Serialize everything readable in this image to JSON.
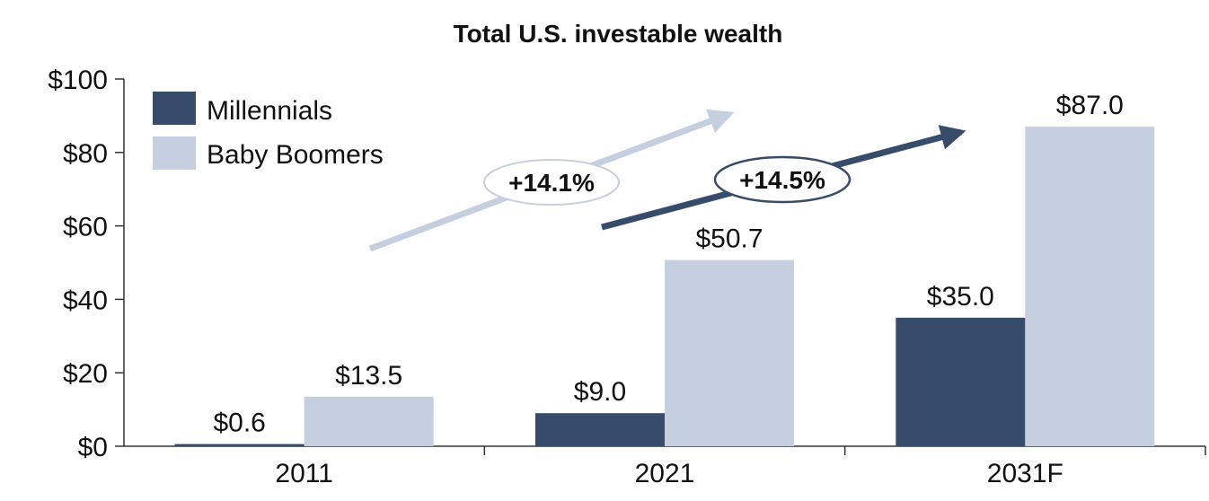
{
  "chart_data": {
    "type": "bar",
    "title": "Total U.S. investable wealth",
    "categories": [
      "2011",
      "2021",
      "2031F"
    ],
    "series": [
      {
        "name": "Millennials",
        "values": [
          0.6,
          9.0,
          35.0
        ],
        "labels": [
          "$0.6",
          "$9.0",
          "$35.0"
        ],
        "color": "#374b6b"
      },
      {
        "name": "Baby Boomers",
        "values": [
          13.5,
          50.7,
          87.0
        ],
        "labels": [
          "$13.5",
          "$50.7",
          "$87.0"
        ],
        "color": "#c5cfe0"
      }
    ],
    "ylim": [
      0,
      100
    ],
    "yticks": [
      0,
      20,
      40,
      60,
      80,
      100
    ],
    "ytick_labels": [
      "$0",
      "$20",
      "$40",
      "$60",
      "$80",
      "$100"
    ],
    "legend_position": "top-left",
    "grid": false,
    "annotations": [
      {
        "label": "+14.1%",
        "series": "Baby Boomers",
        "style": "light-arrow"
      },
      {
        "label": "+14.5%",
        "series": "Millennials",
        "style": "dark-arrow"
      }
    ]
  }
}
